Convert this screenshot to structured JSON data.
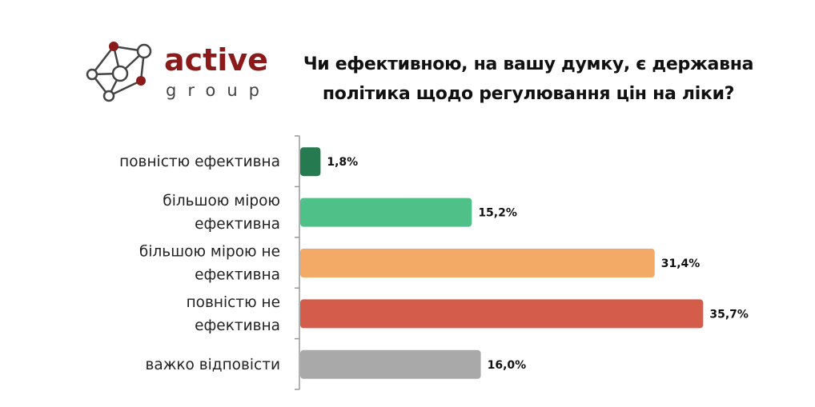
{
  "logo": {
    "text_main": "active",
    "text_sub": "group",
    "brand_color": "#8b1a1a"
  },
  "chart_data": {
    "type": "bar",
    "orientation": "horizontal",
    "title": "Чи ефективною, на вашу думку, є державна політика щодо регулювання цін на ліки?",
    "categories": [
      [
        "повністю ефективна"
      ],
      [
        "більшою мірою",
        "ефективна"
      ],
      [
        "більшою мірою не",
        "ефективна"
      ],
      [
        "повністю не",
        "ефективна"
      ],
      [
        "важко відповісти"
      ]
    ],
    "values": [
      1.8,
      15.2,
      31.4,
      35.7,
      16.0
    ],
    "data_labels": [
      "1,8%",
      "15,2%",
      "31,4%",
      "35,7%",
      "16,0%"
    ],
    "colors": [
      "#267a50",
      "#50c089",
      "#f3aa67",
      "#d45c4a",
      "#a9a9a9"
    ],
    "unit": "%",
    "grid": false,
    "legend": "none"
  }
}
